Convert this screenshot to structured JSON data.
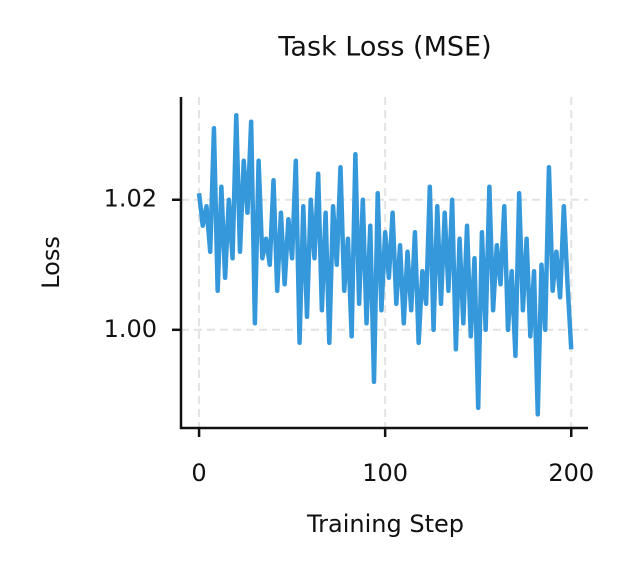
{
  "chart_data": {
    "type": "line",
    "title": "Task Loss (MSE)",
    "xlabel": "Training Step",
    "ylabel": "Loss",
    "x": [
      0,
      2,
      4,
      6,
      8,
      10,
      12,
      14,
      16,
      18,
      20,
      22,
      24,
      26,
      28,
      30,
      32,
      34,
      36,
      38,
      40,
      42,
      44,
      46,
      48,
      50,
      52,
      54,
      56,
      58,
      60,
      62,
      64,
      66,
      68,
      70,
      72,
      74,
      76,
      78,
      80,
      82,
      84,
      86,
      88,
      90,
      92,
      94,
      96,
      98,
      100,
      102,
      104,
      106,
      108,
      110,
      112,
      114,
      116,
      118,
      120,
      122,
      124,
      126,
      128,
      130,
      132,
      134,
      136,
      138,
      140,
      142,
      144,
      146,
      148,
      150,
      152,
      154,
      156,
      158,
      160,
      162,
      164,
      166,
      168,
      170,
      172,
      174,
      176,
      178,
      180,
      182,
      184,
      186,
      188,
      190,
      192,
      194,
      196,
      198,
      200
    ],
    "values": [
      1.021,
      1.016,
      1.019,
      1.012,
      1.031,
      1.006,
      1.022,
      1.008,
      1.02,
      1.011,
      1.033,
      1.012,
      1.026,
      1.018,
      1.032,
      1.001,
      1.026,
      1.011,
      1.014,
      1.01,
      1.023,
      1.006,
      1.018,
      1.007,
      1.017,
      1.011,
      1.026,
      0.998,
      1.019,
      1.002,
      1.02,
      1.011,
      1.024,
      1.003,
      1.018,
      0.998,
      1.019,
      1.01,
      1.025,
      1.006,
      1.014,
      0.999,
      1.027,
      1.004,
      1.02,
      1.001,
      1.016,
      0.992,
      1.021,
      1.003,
      1.015,
      1.008,
      1.018,
      1.004,
      1.013,
      1.001,
      1.012,
      1.003,
      1.015,
      0.998,
      1.009,
      1.004,
      1.022,
      1.0,
      1.019,
      1.004,
      1.018,
      1.006,
      1.02,
      0.997,
      1.014,
      1.001,
      1.016,
      0.999,
      1.011,
      0.988,
      1.015,
      1.0,
      1.022,
      1.003,
      1.013,
      1.007,
      1.019,
      1.0,
      1.009,
      0.996,
      1.021,
      1.003,
      1.014,
      0.999,
      1.009,
      0.987,
      1.01,
      1.0,
      1.025,
      1.006,
      1.012,
      1.005,
      1.019,
      1.007,
      0.997
    ],
    "color": "#3498db",
    "xlim": [
      -9.7,
      209
    ],
    "ylim": [
      0.9849,
      1.0358
    ],
    "xticks": [
      0,
      100,
      200
    ],
    "yticks": [
      {
        "value": 1,
        "label": "1.00"
      },
      1.02
    ],
    "grid": true
  }
}
